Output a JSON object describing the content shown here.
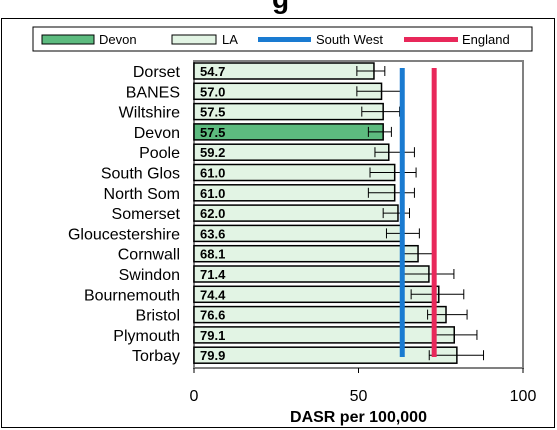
{
  "chart_data": {
    "type": "bar",
    "title_fragment": "g",
    "xlabel": "DASR per 100,000",
    "ylabel": "",
    "xlim": [
      0,
      100
    ],
    "x_ticks": [
      "0",
      "50",
      "100"
    ],
    "legend": {
      "placement": "top",
      "entries": [
        "Devon",
        "LA",
        "South West",
        "England"
      ]
    },
    "categories": [
      "Dorset",
      "BANES",
      "Wiltshire",
      "Devon",
      "Poole",
      "South Glos",
      "North Som",
      "Somerset",
      "Gloucestershire",
      "Cornwall",
      "Swindon",
      "Bournemouth",
      "Bristol",
      "Plymouth",
      "Torbay"
    ],
    "value_labels": [
      "54.7",
      "57.0",
      "57.5",
      "57.5",
      "59.2",
      "61.0",
      "61.0",
      "62.0",
      "63.6",
      "68.1",
      "71.4",
      "74.4",
      "76.6",
      "79.1",
      "79.9"
    ],
    "values": [
      54.7,
      57.0,
      57.5,
      57.5,
      59.2,
      61.0,
      61.0,
      62.0,
      63.6,
      68.1,
      71.4,
      74.4,
      76.6,
      79.1,
      79.9
    ],
    "ci_lower": [
      49.5,
      49.5,
      51.0,
      53.0,
      55.0,
      53.5,
      53.0,
      57.5,
      58.5,
      63.0,
      63.0,
      66.0,
      71.0,
      72.5,
      71.5
    ],
    "ci_upper": [
      58.0,
      63.5,
      62.5,
      60.0,
      67.0,
      67.5,
      67.0,
      65.5,
      68.5,
      72.5,
      79.0,
      82.0,
      83.0,
      86.0,
      88.0
    ],
    "highlight": "Devon",
    "reference_lines": [
      {
        "name": "South West",
        "value": 63.3
      },
      {
        "name": "England",
        "value": 73.0
      }
    ],
    "colors": {
      "highlight_bar": "#5dbb7f",
      "bar": "#e2f4e4",
      "south_west": "#1a7bd1",
      "england": "#e8285a",
      "plot_background": "#ffffff",
      "plot_border": "#808080"
    },
    "grid": false
  }
}
